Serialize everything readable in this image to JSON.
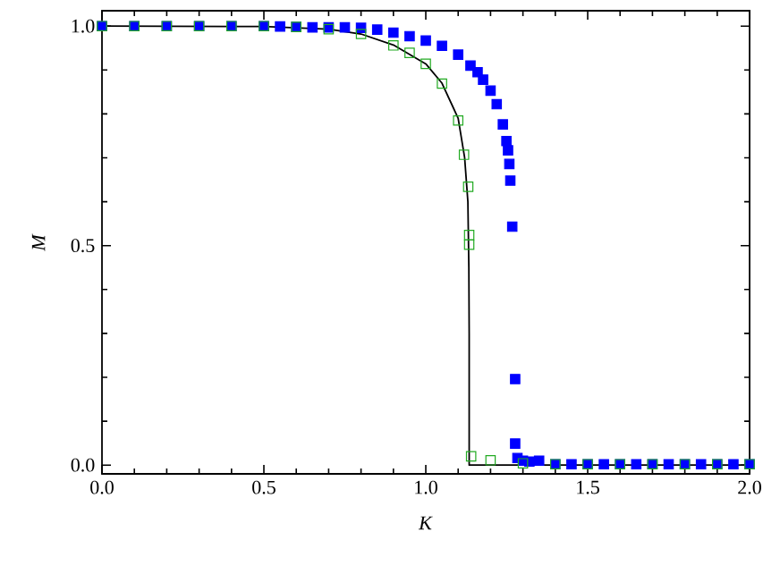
{
  "chart_data": {
    "type": "scatter",
    "xlabel": "*K*",
    "ylabel": "*M*",
    "xlim": [
      0,
      2
    ],
    "ylim": [
      -0.02,
      1.035
    ],
    "xticks": [
      {
        "value": 0,
        "label": "0.0"
      },
      {
        "value": 0.5,
        "label": "0.5"
      },
      {
        "value": 1,
        "label": "1.0"
      },
      {
        "value": 1.5,
        "label": "1.5"
      },
      {
        "value": 2,
        "label": "2.0"
      }
    ],
    "yticks": [
      {
        "value": 0,
        "label": "0.0"
      },
      {
        "value": 0.5,
        "label": "0.5"
      },
      {
        "value": 1,
        "label": "1.0"
      }
    ],
    "marker": "square",
    "grid": false,
    "series": [
      {
        "color": "#0000ff",
        "x": [
          0,
          0.1,
          0.2,
          0.3,
          0.4,
          0.5,
          0.55,
          0.6,
          0.65,
          0.7,
          0.75,
          0.8,
          0.85,
          0.9,
          0.95,
          1.0,
          1.05,
          1.1,
          1.138,
          1.16,
          1.177,
          1.2,
          1.219,
          1.238,
          1.249,
          1.254,
          1.258,
          1.261,
          1.267,
          1.276,
          1.276,
          1.283,
          1.3,
          1.32,
          1.35,
          1.4,
          1.45,
          1.5,
          1.55,
          1.6,
          1.65,
          1.7,
          1.75,
          1.8,
          1.85,
          1.9,
          1.95,
          2.0
        ],
        "values": [
          1,
          1,
          1,
          1,
          1,
          1,
          0.999,
          0.998,
          0.997,
          0.997,
          0.997,
          0.996,
          0.992,
          0.985,
          0.977,
          0.967,
          0.955,
          0.935,
          0.91,
          0.895,
          0.878,
          0.853,
          0.822,
          0.776,
          0.738,
          0.717,
          0.686,
          0.648,
          0.543,
          0.196,
          0.049,
          0.016,
          0.01,
          0.008,
          0.01,
          0.002,
          0.002,
          0.002,
          0.002,
          0.002,
          0.002,
          0.002,
          0.002,
          0.002,
          0.002,
          0.002,
          0.002,
          0.002
        ]
      },
      {
        "color": "#22aa22",
        "x": [
          0,
          0.1,
          0.2,
          0.3,
          0.4,
          0.5,
          0.6,
          0.7,
          0.8,
          0.9,
          0.95,
          1.0,
          1.05,
          1.1,
          1.118,
          1.131,
          1.134,
          1.134,
          1.14,
          1.2,
          1.3,
          1.4,
          1.5,
          1.6,
          1.7,
          1.8,
          1.9,
          2.0
        ],
        "values": [
          1,
          1,
          1,
          1,
          1,
          1,
          0.998,
          0.993,
          0.982,
          0.956,
          0.939,
          0.914,
          0.869,
          0.785,
          0.707,
          0.634,
          0.524,
          0.502,
          0.02,
          0.011,
          0.004,
          0.002,
          0.002,
          0.002,
          0.002,
          0.002,
          0.002,
          0.002
        ]
      },
      {
        "type": "line",
        "color": "#000000",
        "marker": "none",
        "line_style": "solid",
        "x": [
          0,
          0.5,
          0.7,
          0.8,
          0.9,
          1.0,
          1.05,
          1.1,
          1.12,
          1.13,
          1.133,
          1.134,
          1.134,
          1.3,
          2.0
        ],
        "values": [
          1,
          0.999,
          0.993,
          0.982,
          0.957,
          0.914,
          0.87,
          0.79,
          0.7,
          0.6,
          0.45,
          0.3,
          0.0,
          0.0,
          0.0
        ]
      }
    ]
  }
}
